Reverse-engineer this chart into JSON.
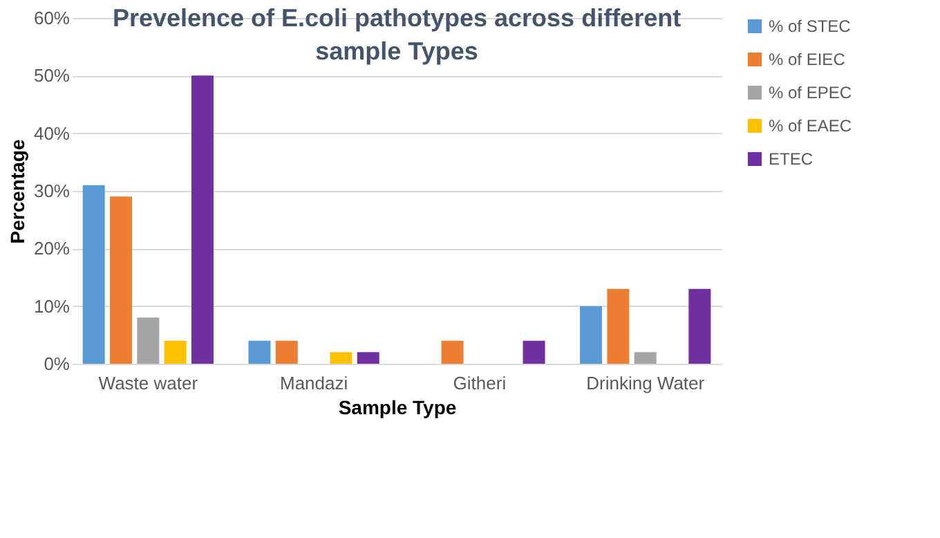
{
  "chart_data": {
    "type": "bar",
    "title": "Prevelence of E.coli pathotypes across different sample Types",
    "xlabel": "Sample Type",
    "ylabel": "Percentage",
    "categories": [
      "Waste water",
      "Mandazi",
      "Githeri",
      "Drinking Water"
    ],
    "series": [
      {
        "name": "% of STEC",
        "color": "#5b9bd5",
        "values": [
          31,
          4,
          0,
          10
        ]
      },
      {
        "name": "% of EIEC",
        "color": "#ed7d31",
        "values": [
          29,
          4,
          4,
          13
        ]
      },
      {
        "name": "% of EPEC",
        "color": "#a5a5a5",
        "values": [
          8,
          0,
          0,
          2
        ]
      },
      {
        "name": "% of EAEC",
        "color": "#ffc000",
        "values": [
          4,
          2,
          0,
          0
        ]
      },
      {
        "name": "ETEC",
        "color": "#7030a0",
        "values": [
          50,
          2,
          4,
          13
        ]
      }
    ],
    "ylim": [
      0,
      60
    ],
    "yticks": [
      {
        "value": 0,
        "label": "0%"
      },
      {
        "value": 10,
        "label": "10%"
      },
      {
        "value": 20,
        "label": "20%"
      },
      {
        "value": 30,
        "label": "30%"
      },
      {
        "value": 40,
        "label": "40%"
      },
      {
        "value": 50,
        "label": "50%"
      },
      {
        "value": 60,
        "label": "60%"
      }
    ],
    "grid": "y",
    "legend": "right"
  }
}
